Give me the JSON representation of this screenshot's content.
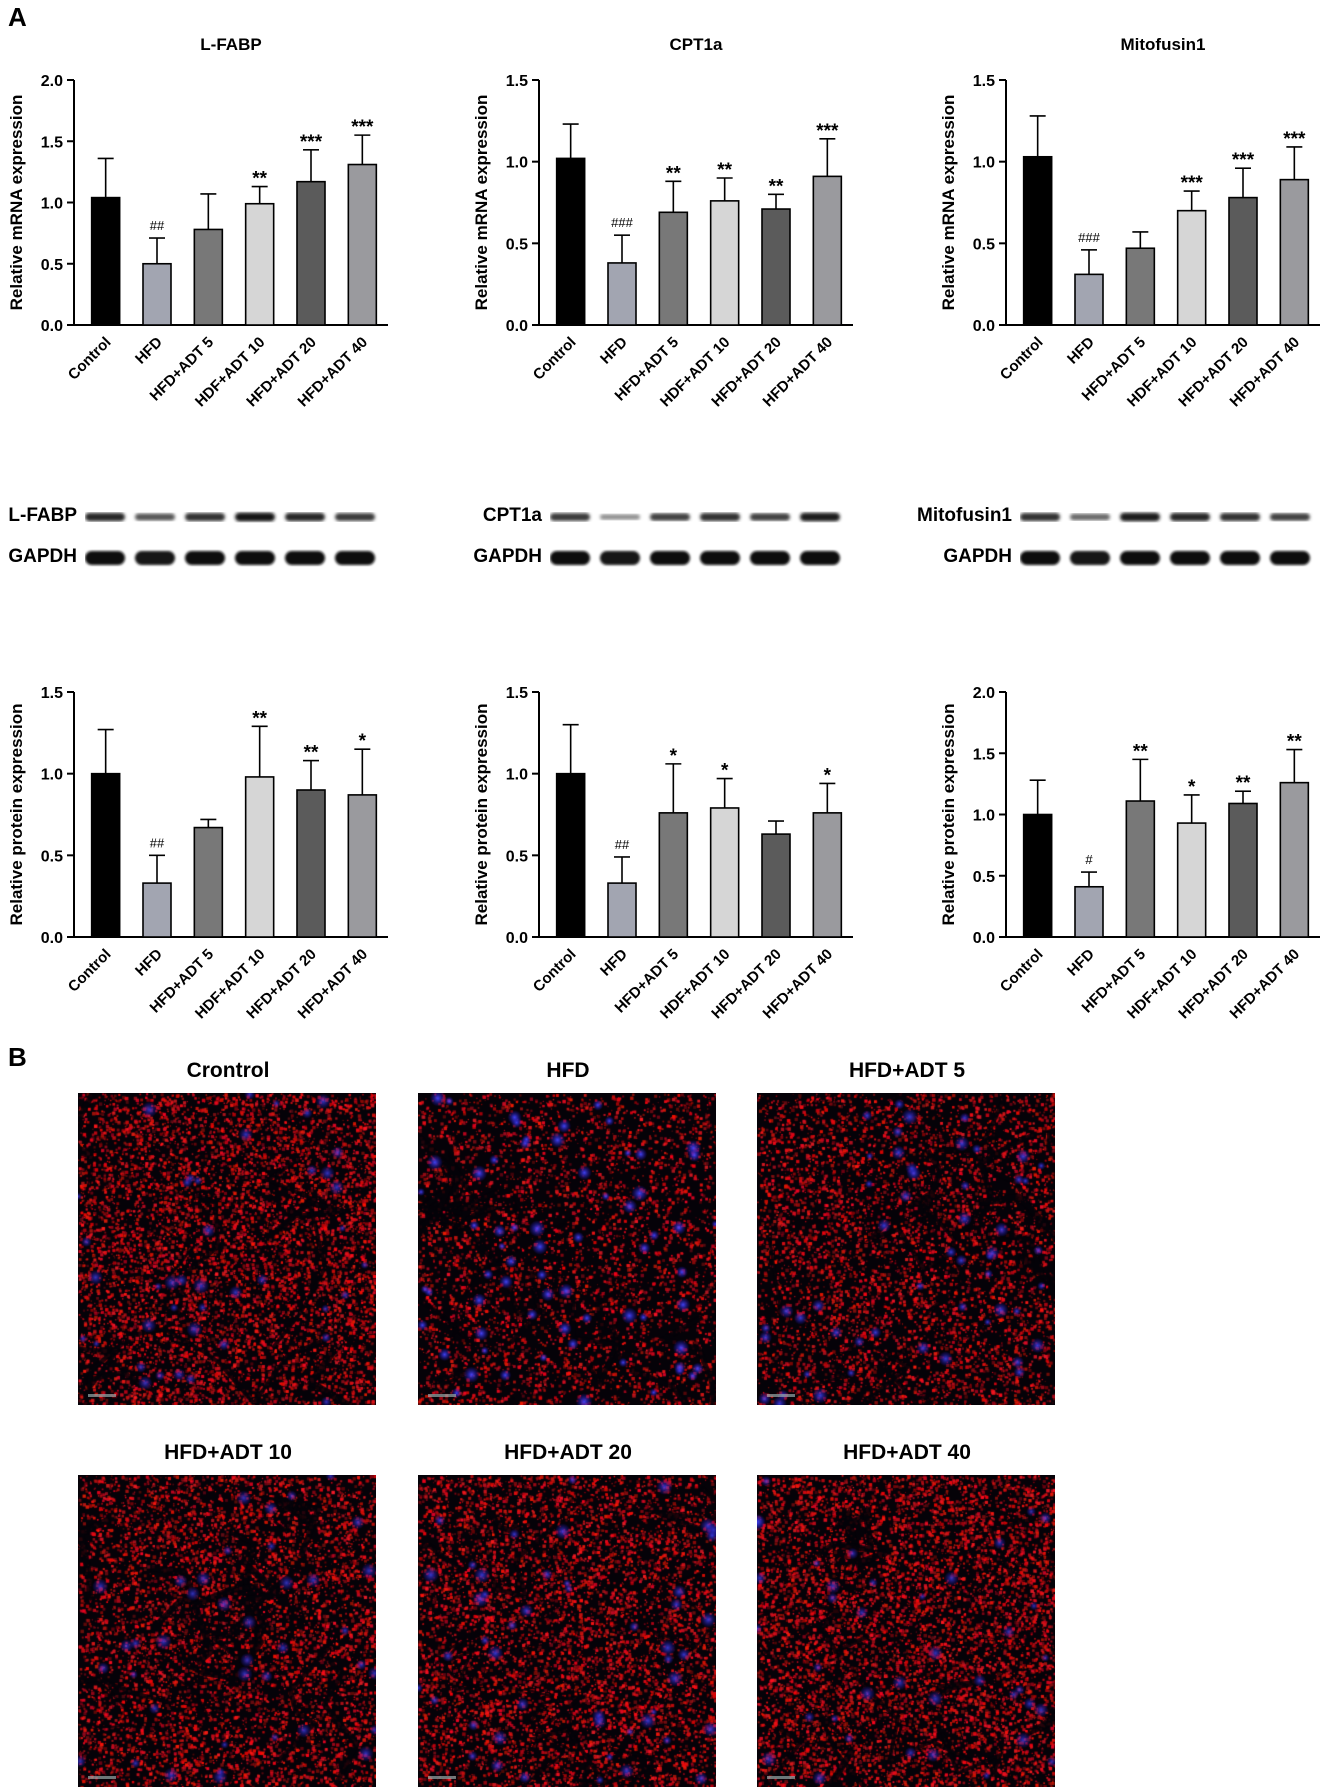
{
  "panel_labels": {
    "a": "A",
    "b": "B"
  },
  "groups": [
    "Control",
    "HFD",
    "HFD+ADT 5",
    "HDF+ADT 10",
    "HFD+ADT 20",
    "HFD+ADT 40"
  ],
  "bar_colors": [
    "#000000",
    "#a2a5b1",
    "#787878",
    "#d6d6d6",
    "#5b5b5b",
    "#9a9a9e"
  ],
  "chart_data": [
    {
      "type": "bar",
      "title": "L-FABP",
      "ylabel": "Relative mRNA expression",
      "categories": [
        "Control",
        "HFD",
        "HFD+ADT 5",
        "HDF+ADT 10",
        "HFD+ADT 20",
        "HFD+ADT 40"
      ],
      "values": [
        1.04,
        0.5,
        0.78,
        0.99,
        1.17,
        1.31
      ],
      "errors": [
        0.32,
        0.21,
        0.29,
        0.14,
        0.26,
        0.24
      ],
      "annotations": [
        "",
        "##",
        "",
        "**",
        "***",
        "***"
      ],
      "ylim": [
        0,
        2.0
      ],
      "yticks": [
        "0.0",
        "0.5",
        "1.0",
        "1.5",
        "2.0"
      ]
    },
    {
      "type": "bar",
      "title": "CPT1a",
      "ylabel": "Relative mRNA expression",
      "categories": [
        "Control",
        "HFD",
        "HFD+ADT 5",
        "HDF+ADT 10",
        "HFD+ADT 20",
        "HFD+ADT 40"
      ],
      "values": [
        1.02,
        0.38,
        0.69,
        0.76,
        0.71,
        0.91
      ],
      "errors": [
        0.21,
        0.17,
        0.19,
        0.14,
        0.09,
        0.23
      ],
      "annotations": [
        "",
        "###",
        "**",
        "**",
        "**",
        "***"
      ],
      "ylim": [
        0,
        1.5
      ],
      "yticks": [
        "0.0",
        "0.5",
        "1.0",
        "1.5"
      ]
    },
    {
      "type": "bar",
      "title": "Mitofusin1",
      "ylabel": "Relative mRNA expression",
      "categories": [
        "Control",
        "HFD",
        "HFD+ADT 5",
        "HDF+ADT 10",
        "HFD+ADT 20",
        "HFD+ADT 40"
      ],
      "values": [
        1.03,
        0.31,
        0.47,
        0.7,
        0.78,
        0.89
      ],
      "errors": [
        0.25,
        0.15,
        0.1,
        0.12,
        0.18,
        0.2
      ],
      "annotations": [
        "",
        "###",
        "",
        "***",
        "***",
        "***"
      ],
      "ylim": [
        0,
        1.5
      ],
      "yticks": [
        "0.0",
        "0.5",
        "1.0",
        "1.5"
      ]
    },
    {
      "type": "bar",
      "title": "",
      "ylabel": "Relative protein expression",
      "categories": [
        "Control",
        "HFD",
        "HFD+ADT 5",
        "HDF+ADT 10",
        "HFD+ADT 20",
        "HFD+ADT 40"
      ],
      "values": [
        1.0,
        0.33,
        0.67,
        0.98,
        0.9,
        0.87
      ],
      "errors": [
        0.27,
        0.17,
        0.05,
        0.31,
        0.18,
        0.28
      ],
      "annotations": [
        "",
        "##",
        "",
        "**",
        "**",
        "*"
      ],
      "ylim": [
        0,
        1.5
      ],
      "yticks": [
        "0.0",
        "0.5",
        "1.0",
        "1.5"
      ]
    },
    {
      "type": "bar",
      "title": "",
      "ylabel": "Relative protein expression",
      "categories": [
        "Control",
        "HFD",
        "HFD+ADT 5",
        "HDF+ADT 10",
        "HFD+ADT 20",
        "HFD+ADT 40"
      ],
      "values": [
        1.0,
        0.33,
        0.76,
        0.79,
        0.63,
        0.76
      ],
      "errors": [
        0.3,
        0.16,
        0.3,
        0.18,
        0.08,
        0.18
      ],
      "annotations": [
        "",
        "##",
        "*",
        "*",
        "",
        "*"
      ],
      "ylim": [
        0,
        1.5
      ],
      "yticks": [
        "0.0",
        "0.5",
        "1.0",
        "1.5"
      ]
    },
    {
      "type": "bar",
      "title": "",
      "ylabel": "Relative protein expression",
      "categories": [
        "Control",
        "HFD",
        "HFD+ADT 5",
        "HDF+ADT 10",
        "HFD+ADT 20",
        "HFD+ADT 40"
      ],
      "values": [
        1.0,
        0.41,
        1.11,
        0.93,
        1.09,
        1.26
      ],
      "errors": [
        0.28,
        0.12,
        0.34,
        0.23,
        0.1,
        0.27
      ],
      "annotations": [
        "",
        "#",
        "**",
        "*",
        "**",
        "**"
      ],
      "ylim": [
        0,
        2.0
      ],
      "yticks": [
        "0.0",
        "0.5",
        "1.0",
        "1.5",
        "2.0"
      ]
    }
  ],
  "blots": [
    {
      "target": "L-FABP",
      "loading": "GAPDH",
      "target_intensity": [
        0.85,
        0.6,
        0.8,
        0.95,
        0.85,
        0.75
      ]
    },
    {
      "target": "CPT1a",
      "loading": "GAPDH",
      "target_intensity": [
        0.75,
        0.3,
        0.7,
        0.8,
        0.7,
        0.9
      ]
    },
    {
      "target": "Mitofusin1",
      "loading": "GAPDH",
      "target_intensity": [
        0.8,
        0.5,
        0.9,
        0.85,
        0.8,
        0.7
      ]
    }
  ],
  "micrographs": [
    {
      "label": "Crontrol",
      "red": 0.85,
      "blue": 0.35
    },
    {
      "label": "HFD",
      "red": 0.35,
      "blue": 0.9
    },
    {
      "label": "HFD+ADT 5",
      "red": 0.55,
      "blue": 0.6
    },
    {
      "label": "HFD+ADT 10",
      "red": 0.7,
      "blue": 0.3
    },
    {
      "label": "HFD+ADT 20",
      "red": 0.75,
      "blue": 0.5
    },
    {
      "label": "HFD+ADT 40",
      "red": 0.9,
      "blue": 0.3
    }
  ]
}
